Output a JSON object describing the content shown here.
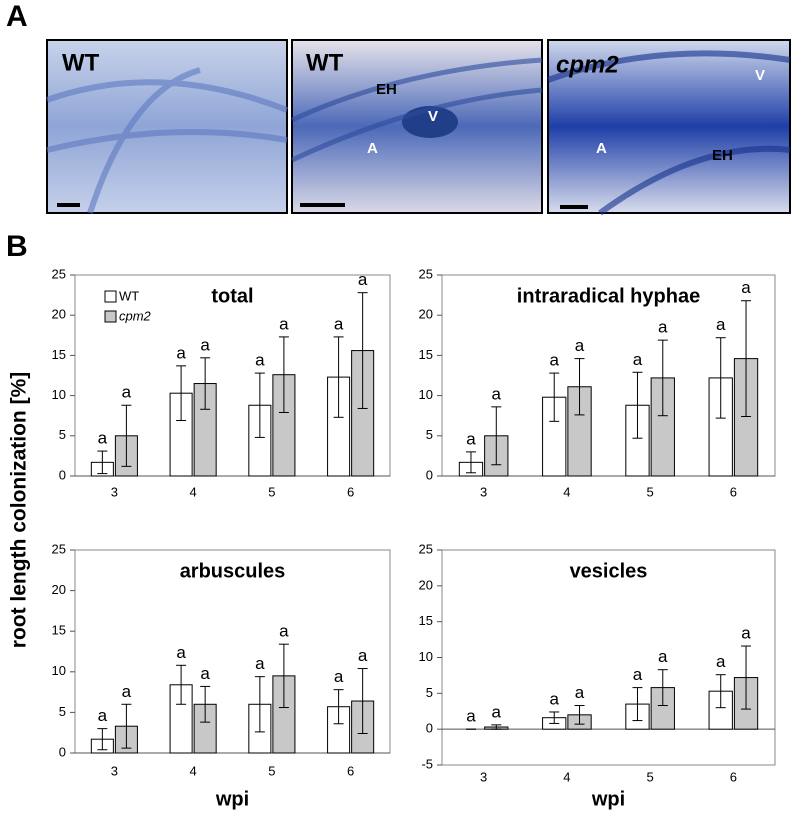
{
  "figure": {
    "panel_a_label": "A",
    "panel_b_label": "B",
    "y_label": "root length colonization [%]",
    "images": [
      {
        "title": "WT",
        "labels": []
      },
      {
        "title": "WT",
        "labels": [
          "EH",
          "V",
          "A"
        ]
      },
      {
        "title": "cpm2",
        "labels": [
          "V",
          "A",
          "EH"
        ]
      }
    ]
  },
  "chart_data": [
    {
      "type": "bar",
      "title": "total",
      "categories": [
        "3",
        "4",
        "5",
        "6"
      ],
      "ylim": [
        0,
        25
      ],
      "yticks": [
        0,
        5,
        10,
        15,
        20,
        25
      ],
      "legend": "top-left",
      "series": [
        {
          "name": "WT",
          "color": "#ffffff",
          "values": [
            1.7,
            10.3,
            8.8,
            12.3
          ],
          "errors": [
            1.4,
            3.4,
            4.0,
            5.0
          ],
          "annotations": [
            "a",
            "a",
            "a",
            "a"
          ]
        },
        {
          "name": "cpm2",
          "color": "#c8c8c8",
          "values": [
            5.0,
            11.5,
            12.6,
            15.6
          ],
          "errors": [
            3.8,
            3.2,
            4.7,
            7.2
          ],
          "annotations": [
            "a",
            "a",
            "a",
            "a"
          ]
        }
      ]
    },
    {
      "type": "bar",
      "title": "intraradical hyphae",
      "categories": [
        "3",
        "4",
        "5",
        "6"
      ],
      "ylim": [
        0,
        25
      ],
      "yticks": [
        0,
        5,
        10,
        15,
        20,
        25
      ],
      "series": [
        {
          "name": "WT",
          "color": "#ffffff",
          "values": [
            1.7,
            9.8,
            8.8,
            12.2
          ],
          "errors": [
            1.3,
            3.0,
            4.1,
            5.0
          ],
          "annotations": [
            "a",
            "a",
            "a",
            "a"
          ]
        },
        {
          "name": "cpm2",
          "color": "#c8c8c8",
          "values": [
            5.0,
            11.1,
            12.2,
            14.6
          ],
          "errors": [
            3.6,
            3.5,
            4.7,
            7.2
          ],
          "annotations": [
            "a",
            "a",
            "a",
            "a"
          ]
        }
      ]
    },
    {
      "type": "bar",
      "title": "arbuscules",
      "xlabel": "wpi",
      "categories": [
        "3",
        "4",
        "5",
        "6"
      ],
      "ylim": [
        0,
        25
      ],
      "yticks": [
        0,
        5,
        10,
        15,
        20,
        25
      ],
      "series": [
        {
          "name": "WT",
          "color": "#ffffff",
          "values": [
            1.7,
            8.4,
            6.0,
            5.7
          ],
          "errors": [
            1.3,
            2.4,
            3.4,
            2.1
          ],
          "annotations": [
            "a",
            "a",
            "a",
            "a"
          ]
        },
        {
          "name": "cpm2",
          "color": "#c8c8c8",
          "values": [
            3.3,
            6.0,
            9.5,
            6.4
          ],
          "errors": [
            2.7,
            2.2,
            3.9,
            4.0
          ],
          "annotations": [
            "a",
            "a",
            "a",
            "a"
          ]
        }
      ]
    },
    {
      "type": "bar",
      "title": "vesicles",
      "xlabel": "wpi",
      "categories": [
        "3",
        "4",
        "5",
        "6"
      ],
      "ylim": [
        -5,
        25
      ],
      "yticks": [
        -5,
        0,
        5,
        10,
        15,
        20,
        25
      ],
      "series": [
        {
          "name": "WT",
          "color": "#ffffff",
          "values": [
            0,
            1.6,
            3.5,
            5.3
          ],
          "errors": [
            0,
            0.8,
            2.3,
            2.3
          ],
          "annotations": [
            "a",
            "a",
            "a",
            "a"
          ]
        },
        {
          "name": "cpm2",
          "color": "#c8c8c8",
          "values": [
            0.3,
            2.0,
            5.8,
            7.2
          ],
          "errors": [
            0.3,
            1.3,
            2.5,
            4.4
          ],
          "annotations": [
            "a",
            "a",
            "a",
            "a"
          ]
        }
      ]
    }
  ]
}
